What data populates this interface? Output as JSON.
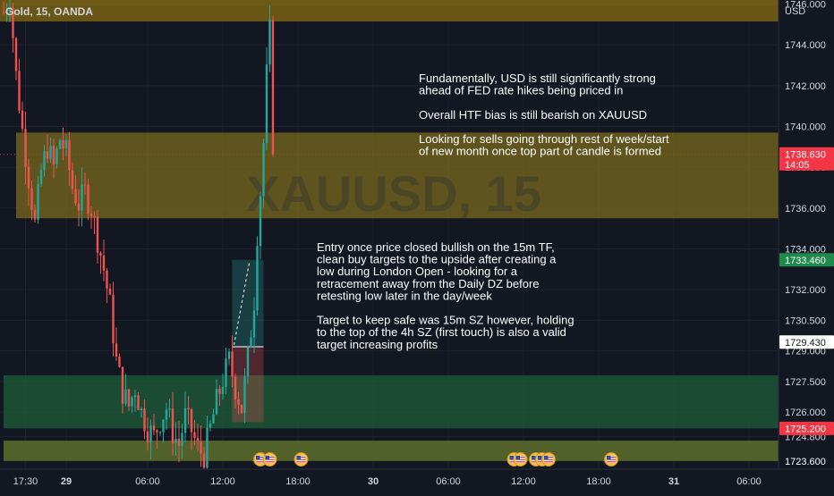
{
  "header": {
    "symbol_label": "Gold, 15, OANDA",
    "currency": "USD"
  },
  "watermark": "XAUUSD, 15",
  "chart_data": {
    "type": "candlestick",
    "symbol": "Gold",
    "timeframe": "15",
    "broker": "OANDA",
    "currency": "USD",
    "ylim": [
      1723.2,
      1746.2
    ],
    "y_ticks": [
      1724.8,
      1726.0,
      1727.5,
      1729.0,
      1730.5,
      1732.0,
      1734.0,
      1736.0,
      1738.0,
      1740.0,
      1742.0,
      1744.0,
      1746.0
    ],
    "y_tick_labels": [
      "1724.800",
      "1726.000",
      "1727.500",
      "1729.000",
      "1730.500",
      "1732.000",
      "1734.000",
      "1736.000",
      "1738.000",
      "1740.000",
      "1742.000",
      "1744.000",
      "1746.000"
    ],
    "x_ticks": [
      {
        "label": "17:30",
        "bar": 7,
        "bold": false
      },
      {
        "label": "29",
        "bar": 20,
        "bold": true
      },
      {
        "label": "06:00",
        "bar": 46,
        "bold": false
      },
      {
        "label": "12:00",
        "bar": 70,
        "bold": false
      },
      {
        "label": "18:00",
        "bar": 94,
        "bold": false
      },
      {
        "label": "30",
        "bar": 118,
        "bold": true
      },
      {
        "label": "06:00",
        "bar": 142,
        "bold": false
      },
      {
        "label": "12:00",
        "bar": 166,
        "bold": false
      },
      {
        "label": "18:00",
        "bar": 190,
        "bold": false
      },
      {
        "label": "31",
        "bar": 214,
        "bold": true
      },
      {
        "label": "06:00",
        "bar": 238,
        "bold": false
      }
    ],
    "last_bar": 86,
    "bars_total": 249,
    "price_path": [
      [
        0,
        1745.6
      ],
      [
        2,
        1746.4
      ],
      [
        4,
        1742.5
      ],
      [
        6,
        1739.8
      ],
      [
        8,
        1737.5
      ],
      [
        10,
        1735.2
      ],
      [
        12,
        1737.8
      ],
      [
        14,
        1739.0
      ],
      [
        16,
        1738.0
      ],
      [
        18,
        1739.4
      ],
      [
        20,
        1738.7
      ],
      [
        22,
        1737.0
      ],
      [
        24,
        1736.2
      ],
      [
        26,
        1736.8
      ],
      [
        28,
        1736.0
      ],
      [
        30,
        1734.5
      ],
      [
        32,
        1733.0
      ],
      [
        34,
        1731.2
      ],
      [
        36,
        1728.5
      ],
      [
        38,
        1727.0
      ],
      [
        40,
        1726.3
      ],
      [
        42,
        1727.2
      ],
      [
        44,
        1726.0
      ],
      [
        46,
        1725.2
      ],
      [
        48,
        1724.8
      ],
      [
        50,
        1725.6
      ],
      [
        52,
        1726.2
      ],
      [
        54,
        1725.0
      ],
      [
        56,
        1724.4
      ],
      [
        58,
        1725.8
      ],
      [
        60,
        1725.1
      ],
      [
        62,
        1724.2
      ],
      [
        64,
        1723.9
      ],
      [
        66,
        1725.2
      ],
      [
        68,
        1726.5
      ],
      [
        70,
        1727.6
      ],
      [
        72,
        1728.5
      ],
      [
        74,
        1727.2
      ],
      [
        76,
        1726.2
      ],
      [
        78,
        1728.6
      ],
      [
        80,
        1731.5
      ],
      [
        81,
        1734.8
      ],
      [
        82,
        1736.8
      ],
      [
        83,
        1739.2
      ],
      [
        84,
        1742.5
      ],
      [
        85,
        1744.6
      ],
      [
        86,
        1738.63
      ]
    ],
    "zones": [
      {
        "kind": "supply",
        "label": "Daily DZ",
        "from": 1735.5,
        "to": 1739.7,
        "start_bar": 4
      },
      {
        "kind": "demand",
        "label": "4h SZ",
        "from": 1725.2,
        "to": 1727.8,
        "start_bar": 0
      },
      {
        "kind": "demand",
        "label": "low band",
        "from": 1723.6,
        "to": 1724.6,
        "start_bar": 0
      },
      {
        "kind": "top",
        "label": "top band",
        "from": 1745.9,
        "to": 1746.2,
        "start_bar": 0
      }
    ],
    "position": {
      "entry": 1729.2,
      "target": 1733.46,
      "stop": 1725.5,
      "start_bar": 73,
      "end_bar": 83
    },
    "price_labels": [
      {
        "value": 1738.63,
        "text": "1738.630",
        "sub": "14:05",
        "color": "#f23645"
      },
      {
        "value": 1733.46,
        "text": "1733.460",
        "color": "#1e8a4c"
      },
      {
        "value": 1729.43,
        "text": "1729.430",
        "color": "#ffffff"
      },
      {
        "value": 1725.2,
        "text": "1725.200",
        "color": "#f23645"
      },
      {
        "value": 1723.6,
        "text": "1723.600",
        "color": "#131722"
      }
    ],
    "events": [
      {
        "bar": 82
      },
      {
        "bar": 85
      },
      {
        "bar": 95
      },
      {
        "bar": 163
      },
      {
        "bar": 165
      },
      {
        "bar": 170
      },
      {
        "bar": 172
      },
      {
        "bar": 174
      },
      {
        "bar": 194
      }
    ],
    "annotations": [
      {
        "id": "fundamentals",
        "lines": [
          "Fundamentally, USD is still significantly strong",
          "ahead of FED rate hikes being priced in",
          "",
          "Overall HTF bias is still bearish on XAUUSD",
          "",
          "Looking for sells going through rest of week/start",
          "of new month once top part of candle is formed"
        ]
      },
      {
        "id": "entry",
        "lines": [
          "Entry once price closed bullish on the 15m TF,",
          "clean buy targets to the upside after creating a",
          "low during London Open - looking for a",
          "retracement away from the Daily DZ before",
          "retesting low later in the day/week",
          "",
          "Target to keep safe was 15m SZ however, holding",
          "to the top of the 4h SZ (first touch) is also a valid",
          "target increasing profits"
        ]
      }
    ]
  }
}
